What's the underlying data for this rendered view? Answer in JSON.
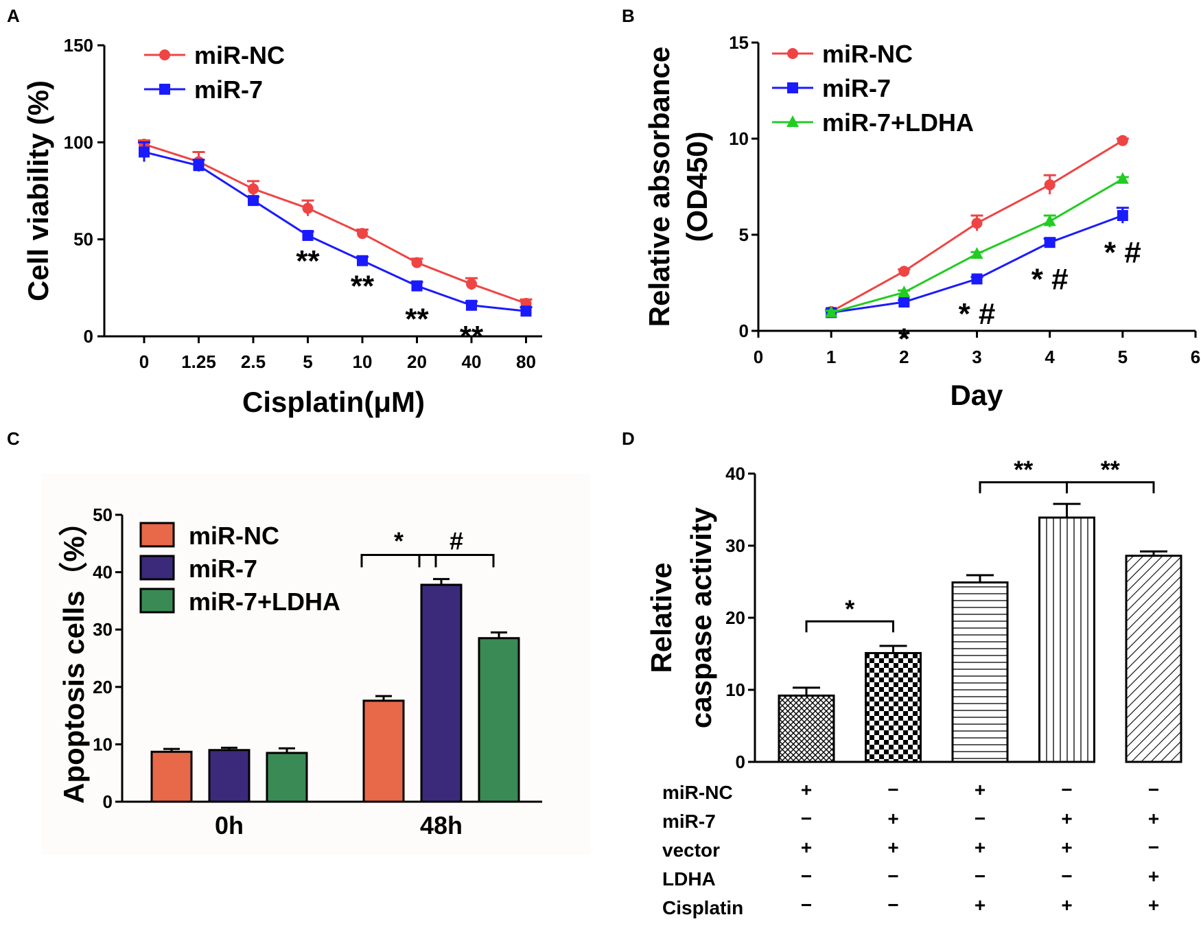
{
  "panels": {
    "a": "A",
    "b": "B",
    "c": "C",
    "d": "D"
  },
  "colors": {
    "red": "#ef4444",
    "blue": "#1a1aff",
    "green": "#22cc22",
    "bar_nc": "#e8684a",
    "bar_mir7": "#3b2a7a",
    "bar_ldha": "#3a8a55"
  },
  "chart_data": [
    {
      "panel": "A",
      "type": "line",
      "xlabel": "Cisplatin(μM)",
      "ylabel": "Cell viability (%)",
      "categories": [
        "0",
        "1.25",
        "2.5",
        "5",
        "10",
        "20",
        "40",
        "80"
      ],
      "ylim": [
        0,
        150
      ],
      "yticks": [
        "0",
        "50",
        "100",
        "150"
      ],
      "legend_position": "top-left",
      "series": [
        {
          "name": "miR-NC",
          "marker": "circle",
          "values": [
            99,
            90,
            76,
            66,
            53,
            38,
            27,
            17
          ],
          "errors": [
            2,
            5,
            4,
            4,
            2,
            2,
            3,
            2
          ]
        },
        {
          "name": "miR-7",
          "marker": "square",
          "values": [
            95,
            88,
            70,
            52,
            39,
            26,
            16,
            13
          ],
          "errors": [
            5,
            3,
            2,
            2,
            2,
            2,
            2,
            2
          ]
        }
      ],
      "annotations": [
        {
          "category": "5",
          "text": "**",
          "y": 40
        },
        {
          "category": "10",
          "text": "**",
          "y": 27
        },
        {
          "category": "20",
          "text": "**",
          "y": 10
        },
        {
          "category": "40",
          "text": "**",
          "y": 1
        }
      ]
    },
    {
      "panel": "B",
      "type": "line",
      "xlabel": "Day",
      "ylabel": "Relative absorbance (OD450)",
      "ylabel_lines": [
        "Relative absorbance",
        "(OD450)"
      ],
      "xlim": [
        0,
        6
      ],
      "xticks": [
        "0",
        "1",
        "2",
        "3",
        "4",
        "5",
        "6"
      ],
      "ylim": [
        0,
        15
      ],
      "yticks": [
        "0",
        "5",
        "10",
        "15"
      ],
      "legend_position": "top-left",
      "series": [
        {
          "name": "miR-NC",
          "marker": "circle",
          "x": [
            1,
            2,
            3,
            4,
            5
          ],
          "values": [
            1.0,
            3.1,
            5.6,
            7.6,
            9.9
          ],
          "errors": [
            0.1,
            0.1,
            0.4,
            0.5,
            0.1
          ]
        },
        {
          "name": "miR-7",
          "marker": "square",
          "x": [
            1,
            2,
            3,
            4,
            5
          ],
          "values": [
            0.95,
            1.5,
            2.7,
            4.6,
            6.0
          ],
          "errors": [
            0.1,
            0.1,
            0.1,
            0.2,
            0.4
          ]
        },
        {
          "name": "miR-7+LDHA",
          "marker": "triangle",
          "x": [
            1,
            2,
            3,
            4,
            5
          ],
          "values": [
            0.95,
            2.0,
            4.0,
            5.7,
            7.9
          ],
          "errors": [
            0.1,
            0.1,
            0.1,
            0.3,
            0.1
          ]
        }
      ],
      "annotations": [
        {
          "x": 2,
          "y": -0.3,
          "text": "*"
        },
        {
          "x": 3,
          "y": 1.0,
          "text": "* #"
        },
        {
          "x": 4,
          "y": 2.8,
          "text": "* #"
        },
        {
          "x": 5,
          "y": 4.2,
          "text": "* #"
        }
      ]
    },
    {
      "panel": "C",
      "type": "bar",
      "ylabel": "Apoptosis cells（%）",
      "categories": [
        "0h",
        "48h"
      ],
      "ylim": [
        0,
        50
      ],
      "yticks": [
        "0",
        "10",
        "20",
        "30",
        "40",
        "50"
      ],
      "legend_position": "top-left",
      "series": [
        {
          "name": "miR-NC",
          "values": [
            8.7,
            17.6
          ],
          "errors": [
            0.5,
            0.8
          ]
        },
        {
          "name": "miR-7",
          "values": [
            9.0,
            37.8
          ],
          "errors": [
            0.4,
            1.0
          ]
        },
        {
          "name": "miR-7+LDHA",
          "values": [
            8.5,
            28.5
          ],
          "errors": [
            0.8,
            1.0
          ]
        }
      ],
      "brackets": [
        {
          "category": "48h",
          "from_series": 0,
          "to_series": 1,
          "y": 43,
          "text": "*"
        },
        {
          "category": "48h",
          "from_series": 1,
          "to_series": 2,
          "y": 43,
          "text": "#"
        }
      ]
    },
    {
      "panel": "D",
      "type": "bar",
      "ylabel": "Relative caspase activity",
      "ylabel_lines": [
        "Relative",
        "caspase activity"
      ],
      "ylim": [
        0,
        40
      ],
      "yticks": [
        "0",
        "10",
        "20",
        "30",
        "40"
      ],
      "values": [
        9.2,
        15.1,
        24.9,
        33.9,
        28.6
      ],
      "errors": [
        1.1,
        1.0,
        1.0,
        1.9,
        0.6
      ],
      "condition_labels": [
        "miR-NC",
        "miR-7",
        "vector",
        "LDHA",
        "Cisplatin"
      ],
      "condition_signs": [
        [
          "+",
          "−",
          "+",
          "−",
          "−"
        ],
        [
          "−",
          "+",
          "−",
          "+",
          "+"
        ],
        [
          "+",
          "+",
          "+",
          "+",
          "−"
        ],
        [
          "−",
          "−",
          "−",
          "−",
          "+"
        ],
        [
          "−",
          "−",
          "+",
          "+",
          "+"
        ]
      ],
      "brackets": [
        {
          "from": 0,
          "to": 1,
          "y": 19.5,
          "text": "*"
        },
        {
          "from": 2,
          "to": 3,
          "y": 38.8,
          "text": "**"
        },
        {
          "from": 3,
          "to": 4,
          "y": 38.8,
          "text": "**"
        }
      ]
    }
  ]
}
